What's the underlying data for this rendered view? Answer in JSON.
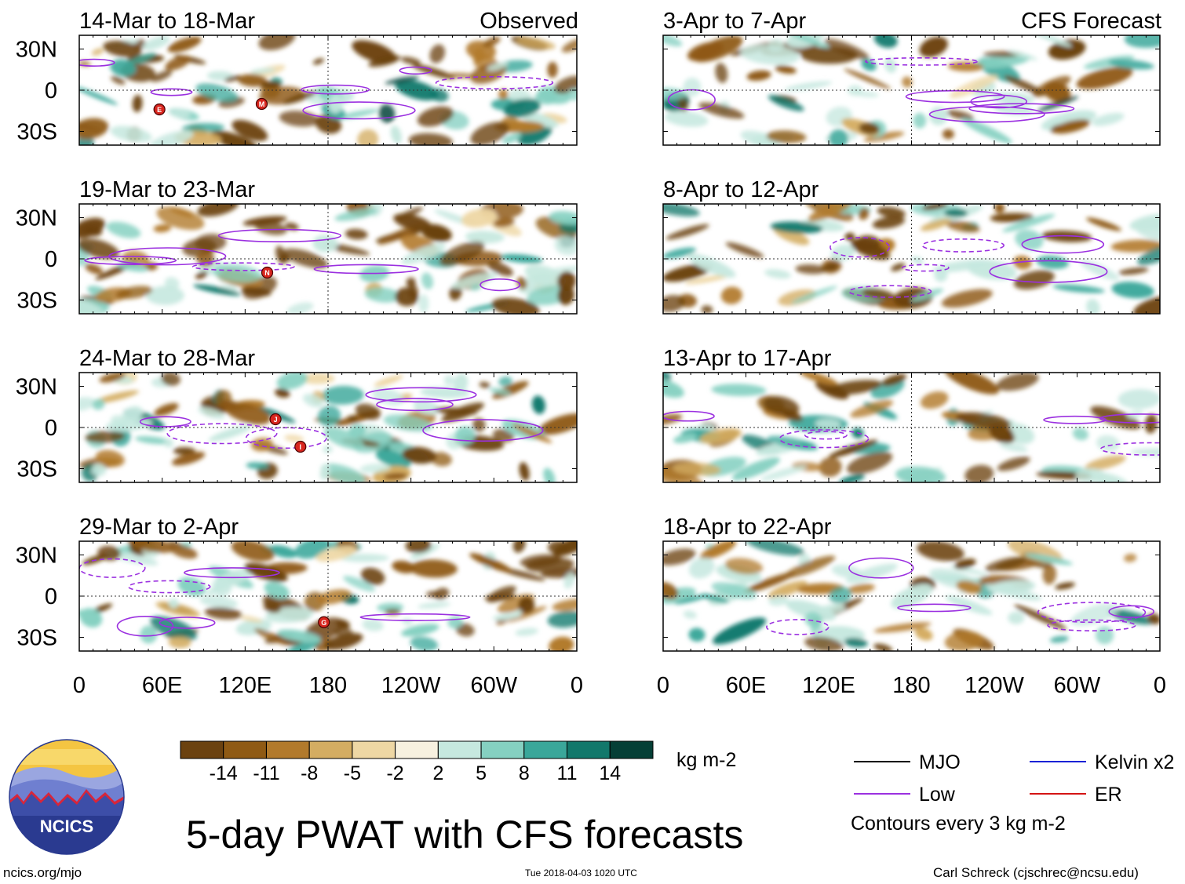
{
  "chart_data": {
    "type": "heatmap",
    "title": "5-day PWAT with CFS forecasts",
    "variable": "PWAT anomaly",
    "units": "kg m-2",
    "colorbar": {
      "ticks": [
        "-14",
        "-11",
        "-8",
        "-5",
        "-2",
        "2",
        "5",
        "8",
        "11",
        "14"
      ],
      "colors": [
        "#6b4210",
        "#8f5a14",
        "#b27a2c",
        "#d4ad62",
        "#eed7a4",
        "#f7f1e0",
        "#ffffff",
        "#c6e8df",
        "#85d0c1",
        "#3aa79a",
        "#12786b",
        "#053f36"
      ]
    },
    "x_ticks": [
      "0",
      "60E",
      "120E",
      "180",
      "120W",
      "60W",
      "0"
    ],
    "y_ticks": [
      "30N",
      "0",
      "30S"
    ],
    "xlim": [
      0,
      360
    ],
    "ylim": [
      -40,
      40
    ],
    "columns": [
      {
        "label": "Observed",
        "panels": [
          {
            "title": "14-Mar to 18-Mar",
            "storms": [
              {
                "letter": "E",
                "lon": 58,
                "lat": -14
              },
              {
                "letter": "M",
                "lon": 132,
                "lat": -10
              }
            ]
          },
          {
            "title": "19-Mar to 23-Mar",
            "storms": [
              {
                "letter": "N",
                "lon": 136,
                "lat": -10
              }
            ]
          },
          {
            "title": "24-Mar to 28-Mar",
            "storms": [
              {
                "letter": "J",
                "lon": 142,
                "lat": 6
              },
              {
                "letter": "I",
                "lon": 160,
                "lat": -14
              }
            ]
          },
          {
            "title": "29-Mar to 2-Apr",
            "storms": [
              {
                "letter": "G",
                "lon": 177,
                "lat": -19
              }
            ]
          }
        ]
      },
      {
        "label": "CFS Forecast",
        "panels": [
          {
            "title": "3-Apr to 7-Apr",
            "storms": []
          },
          {
            "title": "8-Apr to 12-Apr",
            "storms": []
          },
          {
            "title": "13-Apr to 17-Apr",
            "storms": []
          },
          {
            "title": "18-Apr to 22-Apr",
            "storms": []
          }
        ]
      }
    ],
    "legend": [
      {
        "name": "MJO",
        "color": "#000000"
      },
      {
        "name": "Kelvin x2",
        "color": "#1a22d6"
      },
      {
        "name": "Low",
        "color": "#9b30e0"
      },
      {
        "name": "ER",
        "color": "#d41414"
      }
    ],
    "contour_note": "Contours every 3 kg m-2"
  },
  "footer": {
    "site": "ncics.org/mjo",
    "timestamp": "Tue 2018-04-03 1020 UTC",
    "credit": "Carl Schreck (cjschrec@ncsu.edu)",
    "logo_text": "NCICS"
  }
}
